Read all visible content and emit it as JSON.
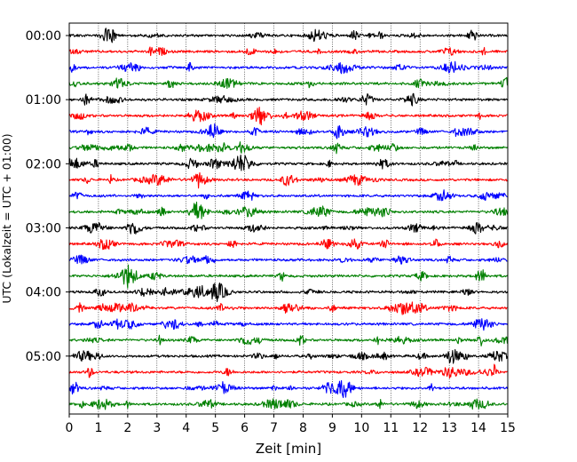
{
  "chart_data": {
    "type": "line",
    "xlabel": "Zeit  [min]",
    "ylabel": "UTC (Lokalzeit = UTC + 01:00)",
    "xlim": [
      0,
      15
    ],
    "x_ticks": [
      "0",
      "1",
      "2",
      "3",
      "4",
      "5",
      "6",
      "7",
      "8",
      "9",
      "10",
      "11",
      "12",
      "13",
      "14",
      "15"
    ],
    "y_ticks": [
      "00:00",
      "01:00",
      "02:00",
      "03:00",
      "04:00",
      "05:00"
    ],
    "grid": "vertical dotted lines at each minute",
    "trace_interval_minutes": 15,
    "traces_per_hour": 4,
    "trace_colors": [
      "#000000",
      "#ff0000",
      "#0000ff",
      "#008000"
    ],
    "series": [
      {
        "start": "00:00",
        "color": "#000000"
      },
      {
        "start": "00:15",
        "color": "#ff0000"
      },
      {
        "start": "00:30",
        "color": "#0000ff"
      },
      {
        "start": "00:45",
        "color": "#008000"
      },
      {
        "start": "01:00",
        "color": "#000000"
      },
      {
        "start": "01:15",
        "color": "#ff0000"
      },
      {
        "start": "01:30",
        "color": "#0000ff"
      },
      {
        "start": "01:45",
        "color": "#008000"
      },
      {
        "start": "02:00",
        "color": "#000000"
      },
      {
        "start": "02:15",
        "color": "#ff0000"
      },
      {
        "start": "02:30",
        "color": "#0000ff"
      },
      {
        "start": "02:45",
        "color": "#008000"
      },
      {
        "start": "03:00",
        "color": "#000000"
      },
      {
        "start": "03:15",
        "color": "#ff0000"
      },
      {
        "start": "03:30",
        "color": "#0000ff"
      },
      {
        "start": "03:45",
        "color": "#008000"
      },
      {
        "start": "04:00",
        "color": "#000000"
      },
      {
        "start": "04:15",
        "color": "#ff0000"
      },
      {
        "start": "04:30",
        "color": "#0000ff"
      },
      {
        "start": "04:45",
        "color": "#008000"
      },
      {
        "start": "05:00",
        "color": "#000000"
      },
      {
        "start": "05:15",
        "color": "#ff0000"
      },
      {
        "start": "05:30",
        "color": "#0000ff"
      },
      {
        "start": "05:45",
        "color": "#008000"
      }
    ]
  }
}
